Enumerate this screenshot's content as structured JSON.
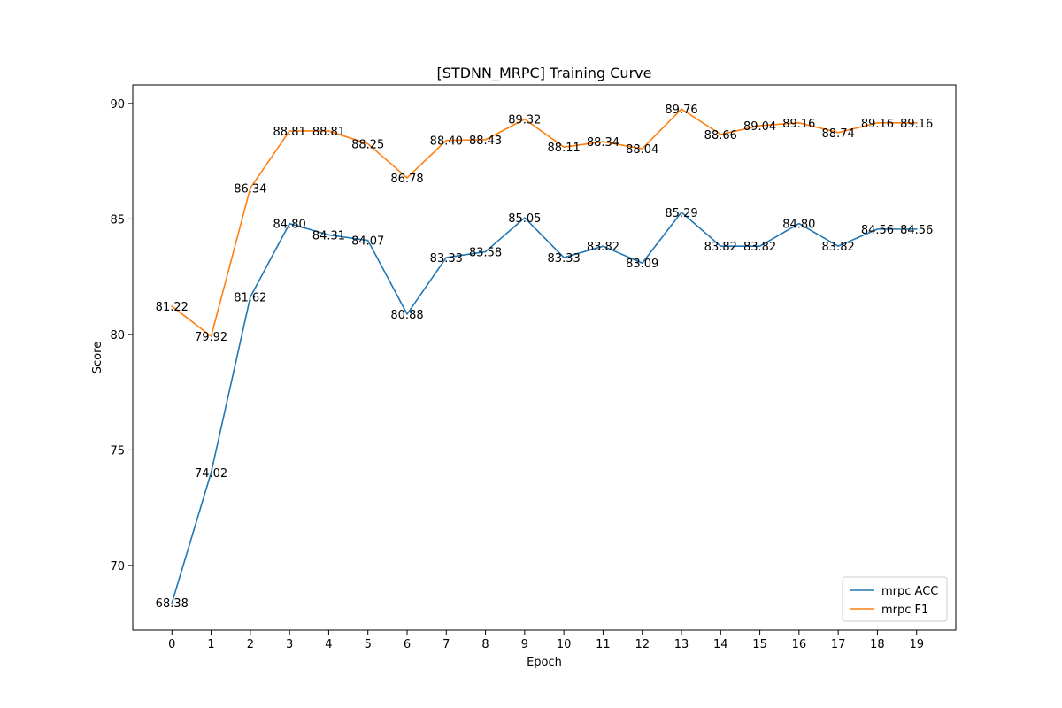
{
  "chart_data": {
    "type": "line",
    "title": "[STDNN_MRPC] Training Curve",
    "xlabel": "Epoch",
    "ylabel": "Score",
    "x": [
      0,
      1,
      2,
      3,
      4,
      5,
      6,
      7,
      8,
      9,
      10,
      11,
      12,
      13,
      14,
      15,
      16,
      17,
      18,
      19
    ],
    "xlim": [
      -1,
      20
    ],
    "ylim": [
      67.2,
      90.8
    ],
    "yticks": [
      70,
      75,
      80,
      85,
      90
    ],
    "grid": false,
    "legend_position": "bottom-right",
    "series": [
      {
        "name": "mrpc ACC",
        "color": "#1f77b4",
        "values": [
          68.38,
          74.02,
          81.62,
          84.8,
          84.31,
          84.07,
          80.88,
          83.33,
          83.58,
          85.05,
          83.33,
          83.82,
          83.09,
          85.29,
          83.82,
          83.82,
          84.8,
          83.82,
          84.56,
          84.56
        ],
        "labels": [
          "68.38",
          "74.02",
          "81.62",
          "84.80",
          "84.31",
          "84.07",
          "80.88",
          "83.33",
          "83.58",
          "85.05",
          "83.33",
          "83.82",
          "83.09",
          "85.29",
          "83.82",
          "83.82",
          "84.80",
          "83.82",
          "84.56",
          "84.56"
        ]
      },
      {
        "name": "mrpc F1",
        "color": "#ff7f0e",
        "values": [
          81.22,
          79.92,
          86.34,
          88.81,
          88.81,
          88.25,
          86.78,
          88.4,
          88.43,
          89.32,
          88.11,
          88.34,
          88.04,
          89.76,
          88.66,
          89.04,
          89.16,
          88.74,
          89.16,
          89.16
        ],
        "labels": [
          "81.22",
          "79.92",
          "86.34",
          "88.81",
          "88.81",
          "88.25",
          "86.78",
          "88.40",
          "88.43",
          "89.32",
          "88.11",
          "88.34",
          "88.04",
          "89.76",
          "88.66",
          "89.04",
          "89.16",
          "88.74",
          "89.16",
          "89.16"
        ]
      }
    ]
  }
}
